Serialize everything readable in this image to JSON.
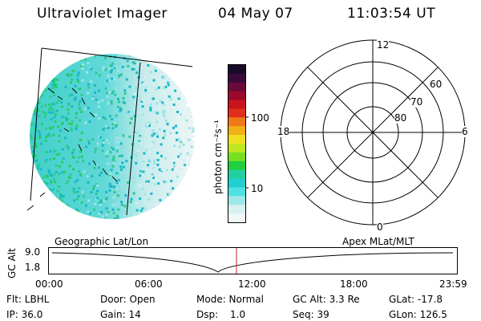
{
  "header": {
    "instrument": "Ultraviolet Imager",
    "date": "04 May 07",
    "time": "11:03:54 UT"
  },
  "colorbar": {
    "unit_label": "photon cm⁻²s⁻¹",
    "ticks": [
      "100",
      "10"
    ],
    "colors_top_to_bottom": [
      "#1a0a2a",
      "#3a0a3a",
      "#6a0a3a",
      "#9a0a2a",
      "#c8141e",
      "#e0301a",
      "#f07818",
      "#f0b018",
      "#f0e020",
      "#c0e820",
      "#78e020",
      "#20d040",
      "#20d0a0",
      "#20d0d0",
      "#50e0e0",
      "#a0e8e8",
      "#d8f0f0",
      "#f0f8f8"
    ]
  },
  "polar_plot": {
    "mlt_labels": {
      "top": "12",
      "left": "18",
      "right": "6",
      "bottom": "0"
    },
    "lat_labels": [
      "60",
      "70",
      "80"
    ]
  },
  "timeline": {
    "left_title": "Geographic Lat/Lon",
    "right_title": "Apex MLat/MLT",
    "axis_label": "GC Alt",
    "y_ticks": [
      "9.0",
      "1.8"
    ],
    "x_ticks": [
      "00:00",
      "06:00",
      "12:00",
      "18:00",
      "23:59"
    ],
    "current_time_marker_color": "#c02020"
  },
  "status": {
    "flt": "Flt: LBHL",
    "ip": "IP: 36.0",
    "door": "Door: Open",
    "gain": "Gain: 14",
    "mode": "Mode: Normal",
    "dsp_label": "Dsp:",
    "dsp_value": "1.0",
    "gc_alt": "GC Alt: 3.3 Re",
    "seq": "Seq: 39",
    "glat": "GLat: -17.8",
    "glon": "GLon: 126.5"
  }
}
